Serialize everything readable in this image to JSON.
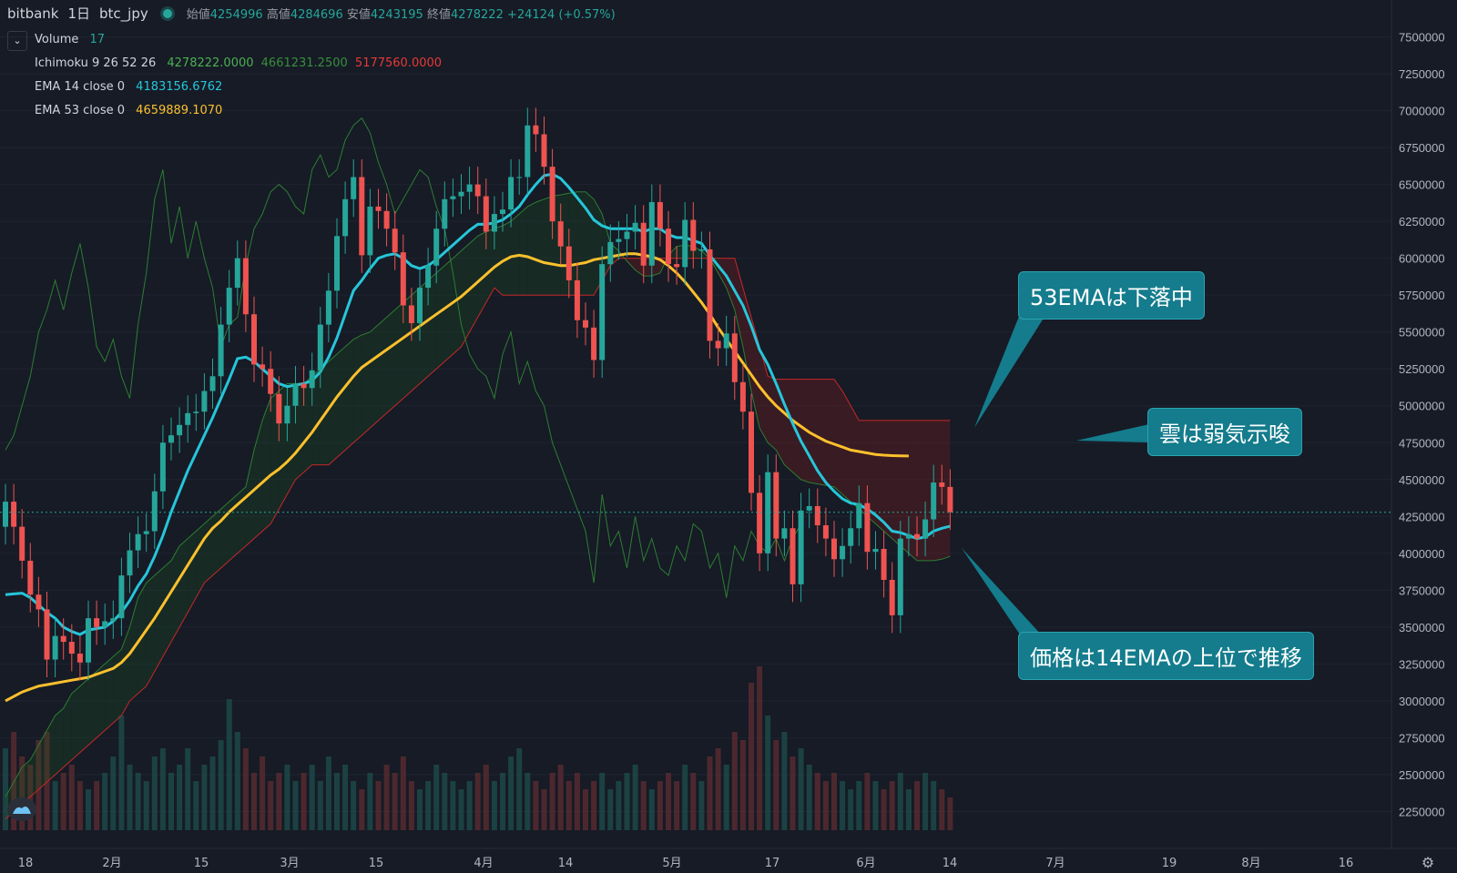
{
  "header": {
    "exchange": "bitbank",
    "interval": "1日",
    "pair": "btc_jpy",
    "open_label": "始値",
    "open": "4254996",
    "high_label": "高値",
    "high": "4284696",
    "low_label": "安値",
    "low": "4243195",
    "close_label": "終値",
    "close": "4278222",
    "change": "+24124 (+0.57%)"
  },
  "legend": {
    "volume": {
      "label": "Volume",
      "value": "17"
    },
    "ichimoku": {
      "label": "Ichimoku 9 26 52 26",
      "v1": "4278222.0000",
      "v2": "4661231.2500",
      "v3": "5177560.0000"
    },
    "ema14": {
      "label": "EMA 14 close 0",
      "value": "4183156.6762"
    },
    "ema53": {
      "label": "EMA 53 close 0",
      "value": "4659889.1070"
    }
  },
  "callouts": {
    "ema53_falling": "53EMAは下落中",
    "cloud_bearish": "雲は弱気示唆",
    "price_above_ema14": "価格は14EMAの上位で推移"
  },
  "colors": {
    "background": "#161b26",
    "up": "#26a69a",
    "down": "#ef5350",
    "ema14": "#26c6da",
    "ema53": "#fbc02d",
    "cloud_bull": "#1b5e20",
    "cloud_bear": "#b71c1c",
    "callout": "#147c8c"
  },
  "chart_data": {
    "type": "candlestick",
    "y_axis_ticks": [
      7500000,
      7250000,
      7000000,
      6750000,
      6500000,
      6250000,
      6000000,
      5750000,
      5500000,
      5250000,
      5000000,
      4750000,
      4500000,
      4250000,
      4000000,
      3750000,
      3500000,
      3250000,
      3000000,
      2750000,
      2500000,
      2250000
    ],
    "y_range": [
      2000000,
      7750000
    ],
    "last_price": 4278222,
    "last_price_label": "4278222",
    "x_labels": [
      "18",
      "2月",
      "15",
      "3月",
      "15",
      "4月",
      "14",
      "5月",
      "17",
      "6月",
      "14",
      "7月",
      "19",
      "8月",
      "16"
    ],
    "candles_close": [
      4350000,
      4180000,
      3950000,
      3720000,
      3620000,
      3280000,
      3440000,
      3400000,
      3320000,
      3260000,
      3560000,
      3500000,
      3540000,
      3560000,
      3850000,
      4020000,
      4130000,
      4150000,
      4420000,
      4750000,
      4800000,
      4870000,
      4950000,
      4960000,
      5100000,
      5200000,
      5550000,
      5800000,
      6000000,
      5620000,
      5280000,
      5250000,
      5080000,
      4880000,
      5000000,
      5150000,
      5120000,
      5240000,
      5550000,
      5780000,
      6150000,
      6400000,
      6550000,
      6020000,
      6350000,
      6320000,
      6200000,
      6040000,
      5680000,
      5560000,
      5800000,
      5950000,
      6200000,
      6400000,
      6420000,
      6450000,
      6500000,
      6420000,
      6180000,
      6300000,
      6330000,
      6550000,
      6550000,
      6900000,
      6840000,
      6620000,
      6250000,
      6080000,
      5850000,
      5580000,
      5530000,
      5310000,
      5960000,
      6110000,
      6130000,
      6180000,
      6240000,
      5950000,
      6380000,
      6200000,
      5960000,
      5940000,
      6260000,
      6050000,
      6060000,
      5440000,
      5390000,
      5490000,
      5160000,
      4960000,
      4410000,
      4000000,
      4550000,
      4100000,
      4170000,
      3790000,
      4290000,
      4320000,
      4190000,
      4100000,
      3960000,
      4050000,
      4170000,
      4340000,
      4010000,
      4030000,
      3820000,
      3580000,
      4100000,
      4130000,
      4100000,
      4230000,
      4480000,
      4450000,
      4278222
    ],
    "candles_open": [
      4180000,
      4350000,
      4180000,
      3950000,
      3720000,
      3620000,
      3280000,
      3440000,
      3400000,
      3320000,
      3260000,
      3560000,
      3500000,
      3540000,
      3560000,
      3850000,
      4020000,
      4130000,
      4150000,
      4420000,
      4750000,
      4800000,
      4870000,
      4950000,
      4960000,
      5100000,
      5200000,
      5550000,
      5800000,
      6000000,
      5620000,
      5280000,
      5250000,
      5080000,
      4880000,
      5000000,
      5150000,
      5120000,
      5240000,
      5550000,
      5780000,
      6150000,
      6400000,
      6550000,
      6020000,
      6350000,
      6320000,
      6200000,
      6040000,
      5680000,
      5560000,
      5800000,
      5950000,
      6200000,
      6400000,
      6420000,
      6450000,
      6500000,
      6420000,
      6180000,
      6300000,
      6330000,
      6550000,
      6550000,
      6900000,
      6840000,
      6620000,
      6250000,
      6080000,
      5850000,
      5580000,
      5530000,
      5310000,
      5960000,
      6110000,
      6130000,
      6180000,
      6240000,
      5950000,
      6380000,
      6200000,
      5960000,
      5940000,
      6260000,
      6050000,
      6060000,
      5440000,
      5390000,
      5490000,
      5160000,
      4960000,
      4410000,
      4000000,
      4550000,
      4100000,
      4170000,
      3790000,
      4290000,
      4320000,
      4190000,
      4100000,
      3960000,
      4050000,
      4170000,
      4340000,
      4010000,
      4030000,
      3820000,
      3580000,
      4100000,
      4130000,
      4100000,
      4230000,
      4480000,
      4450000
    ],
    "ema14": [
      3720000,
      3725000,
      3730000,
      3700000,
      3650000,
      3600000,
      3560000,
      3500000,
      3470000,
      3450000,
      3480000,
      3490000,
      3500000,
      3540000,
      3600000,
      3680000,
      3780000,
      3860000,
      3980000,
      4120000,
      4280000,
      4420000,
      4560000,
      4680000,
      4800000,
      4920000,
      5050000,
      5180000,
      5320000,
      5330000,
      5300000,
      5250000,
      5200000,
      5150000,
      5130000,
      5140000,
      5150000,
      5170000,
      5230000,
      5330000,
      5460000,
      5620000,
      5780000,
      5850000,
      5930000,
      6000000,
      6020000,
      6030000,
      6000000,
      5950000,
      5930000,
      5950000,
      5990000,
      6040000,
      6090000,
      6140000,
      6190000,
      6230000,
      6230000,
      6240000,
      6260000,
      6300000,
      6350000,
      6430000,
      6500000,
      6560000,
      6570000,
      6540000,
      6480000,
      6410000,
      6340000,
      6260000,
      6220000,
      6200000,
      6200000,
      6200000,
      6200000,
      6180000,
      6200000,
      6200000,
      6160000,
      6140000,
      6140000,
      6120000,
      6100000,
      6020000,
      5950000,
      5880000,
      5780000,
      5680000,
      5540000,
      5380000,
      5280000,
      5150000,
      5010000,
      4880000,
      4760000,
      4660000,
      4560000,
      4480000,
      4420000,
      4370000,
      4340000,
      4330000,
      4300000,
      4260000,
      4210000,
      4150000,
      4140000,
      4120000,
      4100000,
      4110000,
      4150000,
      4170000,
      4183157
    ],
    "ema53": [
      3000000,
      3030000,
      3060000,
      3080000,
      3100000,
      3110000,
      3120000,
      3130000,
      3140000,
      3150000,
      3160000,
      3180000,
      3200000,
      3220000,
      3260000,
      3320000,
      3400000,
      3480000,
      3560000,
      3650000,
      3740000,
      3830000,
      3920000,
      4010000,
      4100000,
      4170000,
      4220000,
      4280000,
      4330000,
      4380000,
      4430000,
      4480000,
      4530000,
      4570000,
      4620000,
      4680000,
      4750000,
      4820000,
      4900000,
      4980000,
      5060000,
      5130000,
      5200000,
      5260000,
      5300000,
      5340000,
      5380000,
      5420000,
      5460000,
      5500000,
      5540000,
      5580000,
      5620000,
      5660000,
      5700000,
      5740000,
      5790000,
      5840000,
      5890000,
      5940000,
      5980000,
      6010000,
      6020000,
      6010000,
      5990000,
      5970000,
      5960000,
      5950000,
      5950000,
      5960000,
      5970000,
      5990000,
      6000000,
      6010000,
      6020000,
      6030000,
      6030000,
      6020000,
      6010000,
      5990000,
      5950000,
      5900000,
      5840000,
      5770000,
      5700000,
      5620000,
      5530000,
      5450000,
      5370000,
      5290000,
      5210000,
      5130000,
      5060000,
      5000000,
      4950000,
      4900000,
      4860000,
      4820000,
      4790000,
      4760000,
      4740000,
      4720000,
      4700000,
      4690000,
      4680000,
      4670000,
      4665000,
      4662000,
      4660000,
      4659889
    ],
    "volume_rel": [
      0.5,
      0.6,
      0.45,
      0.4,
      0.55,
      0.6,
      0.3,
      0.35,
      0.4,
      0.3,
      0.25,
      0.3,
      0.35,
      0.45,
      0.7,
      0.4,
      0.35,
      0.3,
      0.45,
      0.5,
      0.35,
      0.4,
      0.5,
      0.3,
      0.4,
      0.45,
      0.55,
      0.8,
      0.6,
      0.5,
      0.35,
      0.45,
      0.3,
      0.35,
      0.4,
      0.3,
      0.35,
      0.4,
      0.3,
      0.45,
      0.35,
      0.4,
      0.3,
      0.25,
      0.35,
      0.3,
      0.4,
      0.35,
      0.45,
      0.3,
      0.25,
      0.3,
      0.4,
      0.35,
      0.3,
      0.25,
      0.3,
      0.35,
      0.4,
      0.3,
      0.35,
      0.45,
      0.5,
      0.35,
      0.3,
      0.25,
      0.35,
      0.4,
      0.3,
      0.35,
      0.25,
      0.3,
      0.35,
      0.25,
      0.3,
      0.35,
      0.4,
      0.3,
      0.25,
      0.3,
      0.35,
      0.3,
      0.4,
      0.35,
      0.3,
      0.45,
      0.5,
      0.4,
      0.6,
      0.55,
      0.9,
      1.0,
      0.7,
      0.55,
      0.6,
      0.45,
      0.5,
      0.4,
      0.35,
      0.3,
      0.35,
      0.3,
      0.25,
      0.3,
      0.35,
      0.3,
      0.25,
      0.3,
      0.35,
      0.25,
      0.3,
      0.35,
      0.3,
      0.25,
      0.2
    ],
    "cloud_lead_a": [
      2350000,
      2450000,
      2550000,
      2600000,
      2700000,
      2800000,
      2900000,
      2950000,
      3050000,
      3100000,
      3150000,
      3200000,
      3250000,
      3300000,
      3350000,
      3500000,
      3700000,
      3800000,
      3850000,
      3900000,
      3950000,
      4050000,
      4100000,
      4150000,
      4200000,
      4250000,
      4300000,
      4350000,
      4400000,
      4450000,
      4700000,
      4900000,
      5050000,
      5100000,
      5150000,
      5150000,
      5150000,
      5200000,
      5250000,
      5300000,
      5350000,
      5400000,
      5450000,
      5480000,
      5500000,
      5550000,
      5600000,
      5650000,
      5700000,
      5750000,
      5800000,
      5850000,
      5900000,
      5950000,
      6000000,
      6050000,
      6100000,
      6150000,
      6180000,
      6200000,
      6220000,
      6250000,
      6300000,
      6350000,
      6380000,
      6400000,
      6420000,
      6430000,
      6440000,
      6450000,
      6450000,
      6400000,
      6300000,
      6100000,
      6050000,
      5980000,
      5920000,
      5880000,
      5880000,
      5900000,
      6020000,
      6080000,
      6090000,
      6080000,
      6050000,
      6000000,
      5900000,
      5800000,
      5650000,
      5400000,
      5100000,
      4850000,
      4750000,
      4700000,
      4600000,
      4550000,
      4500000,
      4480000,
      4470000,
      4460000,
      4450000,
      4400000,
      4350000,
      4300000,
      4250000,
      4200000,
      4150000,
      4100000,
      4050000,
      4000000,
      3950000,
      3950000,
      3950000,
      3960000,
      3980000
    ],
    "cloud_lead_b": [
      2200000,
      2250000,
      2300000,
      2350000,
      2400000,
      2450000,
      2500000,
      2550000,
      2600000,
      2650000,
      2700000,
      2750000,
      2800000,
      2850000,
      2900000,
      3000000,
      3050000,
      3100000,
      3200000,
      3300000,
      3400000,
      3500000,
      3600000,
      3700000,
      3800000,
      3850000,
      3900000,
      3950000,
      4000000,
      4050000,
      4100000,
      4150000,
      4200000,
      4300000,
      4400000,
      4500000,
      4550000,
      4600000,
      4600000,
      4600000,
      4650000,
      4700000,
      4750000,
      4800000,
      4850000,
      4900000,
      4950000,
      5000000,
      5050000,
      5100000,
      5150000,
      5200000,
      5250000,
      5300000,
      5350000,
      5400000,
      5500000,
      5600000,
      5700000,
      5800000,
      5750000,
      5750000,
      5750000,
      5750000,
      5750000,
      5750000,
      5750000,
      5750000,
      5750000,
      5750000,
      5750000,
      5750000,
      5850000,
      5950000,
      6000000,
      6000000,
      6000000,
      6000000,
      6000000,
      6000000,
      6000000,
      6000000,
      6000000,
      6000000,
      6000000,
      6000000,
      6000000,
      6000000,
      6000000,
      5800000,
      5600000,
      5400000,
      5200000,
      5180000,
      5180000,
      5180000,
      5180000,
      5180000,
      5180000,
      5180000,
      5180000,
      5100000,
      5000000,
      4900000,
      4900000,
      4900000,
      4900000,
      4900000,
      4900000,
      4900000,
      4900000,
      4900000,
      4900000,
      4900000,
      4900000
    ],
    "lagging_span": [
      4700000,
      4800000,
      5000000,
      5200000,
      5500000,
      5650000,
      5850000,
      5650000,
      5900000,
      6100000,
      5800000,
      5400000,
      5300000,
      5450000,
      5200000,
      5050000,
      5550000,
      5900000,
      6400000,
      6600000,
      6100000,
      6350000,
      6000000,
      6250000,
      6000000,
      5800000,
      5400000,
      5550000,
      5600000,
      5950000,
      6200000,
      6300000,
      6450000,
      6500000,
      6450000,
      6350000,
      6300000,
      6600000,
      6700000,
      6550000,
      6600000,
      6800000,
      6900000,
      6950000,
      6850000,
      6650000,
      6500000,
      6300000,
      6400000,
      6500000,
      6600000,
      6550000,
      6350000,
      6200000,
      5900000,
      5550000,
      5350000,
      5250000,
      5200000,
      5050000,
      5350000,
      5500000,
      5150000,
      5300000,
      5100000,
      5000000,
      4750000,
      4600000,
      4450000,
      4300000,
      4150000,
      3800000,
      4400000,
      4050000,
      4150000,
      3900000,
      4250000,
      3950000,
      4100000,
      3900000,
      3850000,
      4050000,
      3950000,
      4200000,
      4150000,
      3900000,
      4000000,
      3700000,
      4050000,
      3950000,
      4150000,
      4050000,
      4000000,
      4100000,
      3950000,
      4100000,
      4200000
    ]
  }
}
